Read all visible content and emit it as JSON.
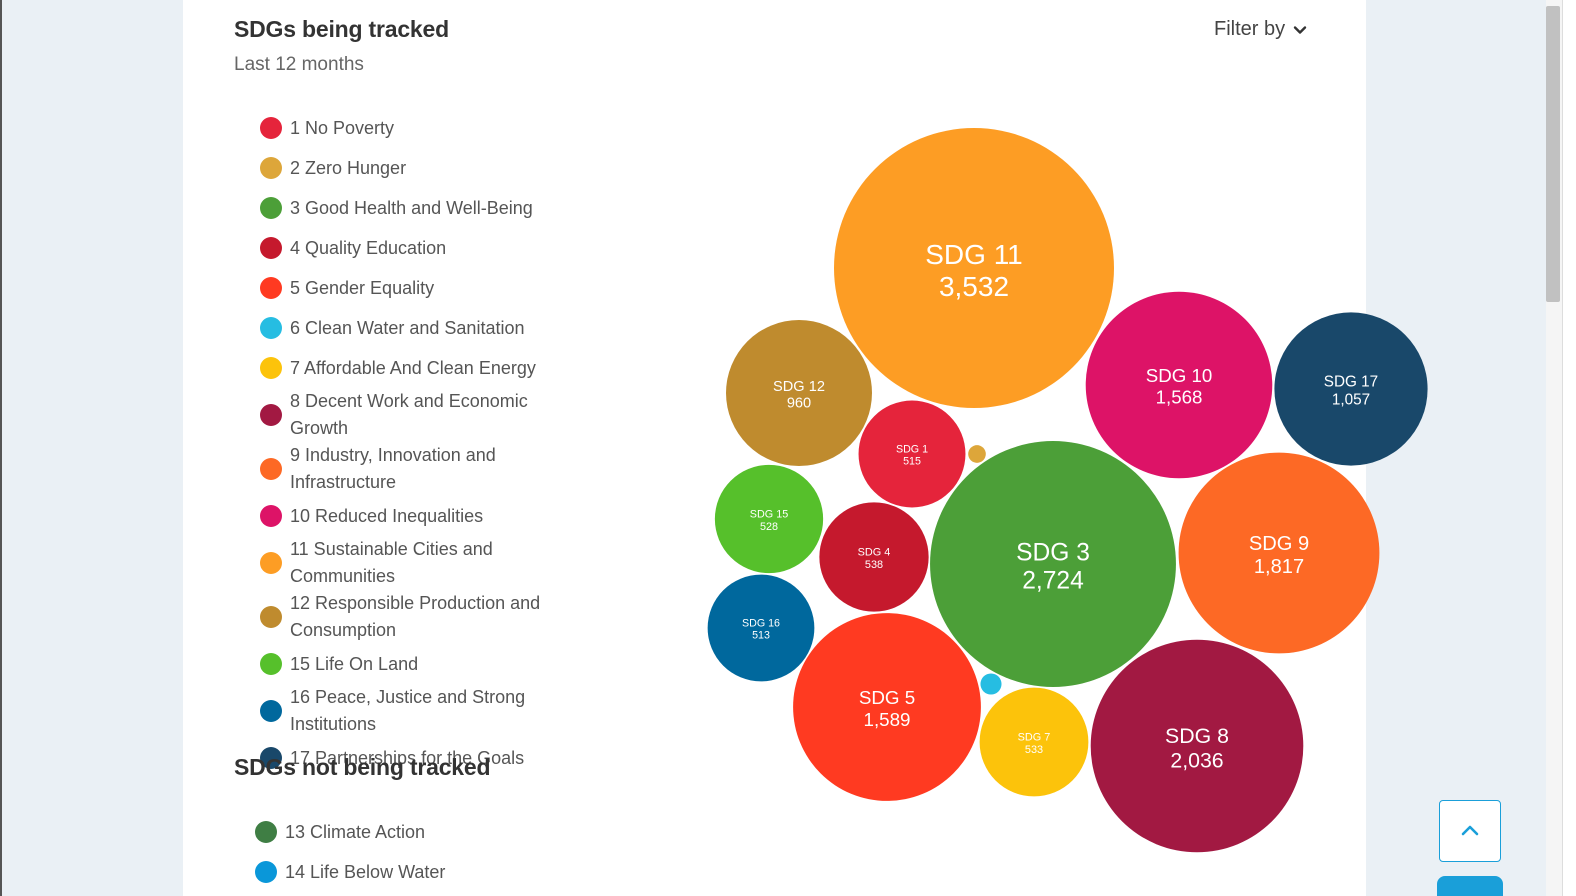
{
  "header": {
    "title": "SDGs being tracked",
    "subtitle": "Last 12 months",
    "filter_label": "Filter by"
  },
  "tracked": [
    {
      "label": "1 No Poverty",
      "color": "#e5243b"
    },
    {
      "label": "2 Zero Hunger",
      "color": "#dda63a"
    },
    {
      "label": "3 Good Health and Well-Being",
      "color": "#4c9f38"
    },
    {
      "label": "4 Quality Education",
      "color": "#c5192d"
    },
    {
      "label": "5 Gender Equality",
      "color": "#ff3a21"
    },
    {
      "label": "6 Clean Water and Sanitation",
      "color": "#26bde2"
    },
    {
      "label": "7 Affordable And Clean Energy",
      "color": "#fcc30b"
    },
    {
      "label": "8 Decent Work and Economic Growth",
      "color": "#a21942"
    },
    {
      "label": "9 Industry, Innovation and Infrastructure",
      "color": "#fd6925"
    },
    {
      "label": "10 Reduced Inequalities",
      "color": "#dd1367"
    },
    {
      "label": "11 Sustainable Cities and Communities",
      "color": "#fd9d24"
    },
    {
      "label": "12 Responsible Production and Consumption",
      "color": "#bf8b2e"
    },
    {
      "label": "15 Life On Land",
      "color": "#56c02b"
    },
    {
      "label": "16 Peace, Justice and Strong Institutions",
      "color": "#00689d"
    },
    {
      "label": "17 Partnerships for the Goals",
      "color": "#19486a"
    }
  ],
  "not_tracked_title": "SDGs not being tracked",
  "not_tracked": [
    {
      "label": "13 Climate Action",
      "color": "#3f7e44"
    },
    {
      "label": "14 Life Below Water",
      "color": "#0a97d9"
    }
  ],
  "chart_data": {
    "type": "bubble",
    "series": [
      {
        "name": "SDG 11",
        "value": 3532,
        "value_label": "3,532",
        "color": "#fd9d24"
      },
      {
        "name": "SDG 3",
        "value": 2724,
        "value_label": "2,724",
        "color": "#4c9f38"
      },
      {
        "name": "SDG 8",
        "value": 2036,
        "value_label": "2,036",
        "color": "#a21942"
      },
      {
        "name": "SDG 9",
        "value": 1817,
        "value_label": "1,817",
        "color": "#fd6925"
      },
      {
        "name": "SDG 5",
        "value": 1589,
        "value_label": "1,589",
        "color": "#ff3a21"
      },
      {
        "name": "SDG 10",
        "value": 1568,
        "value_label": "1,568",
        "color": "#dd1367"
      },
      {
        "name": "SDG 17",
        "value": 1057,
        "value_label": "1,057",
        "color": "#19486a"
      },
      {
        "name": "SDG 12",
        "value": 960,
        "value_label": "960",
        "color": "#bf8b2e"
      },
      {
        "name": "SDG 4",
        "value": 538,
        "value_label": "538",
        "color": "#c5192d"
      },
      {
        "name": "SDG 7",
        "value": 533,
        "value_label": "533",
        "color": "#fcc30b"
      },
      {
        "name": "SDG 15",
        "value": 528,
        "value_label": "528",
        "color": "#56c02b"
      },
      {
        "name": "SDG 1",
        "value": 515,
        "value_label": "515",
        "color": "#e5243b"
      },
      {
        "name": "SDG 16",
        "value": 513,
        "value_label": "513",
        "color": "#00689d"
      },
      {
        "name": "",
        "value": 20,
        "value_label": "",
        "color": "#26bde2"
      },
      {
        "name": "",
        "value": 14,
        "value_label": "",
        "color": "#dda63a"
      }
    ]
  }
}
